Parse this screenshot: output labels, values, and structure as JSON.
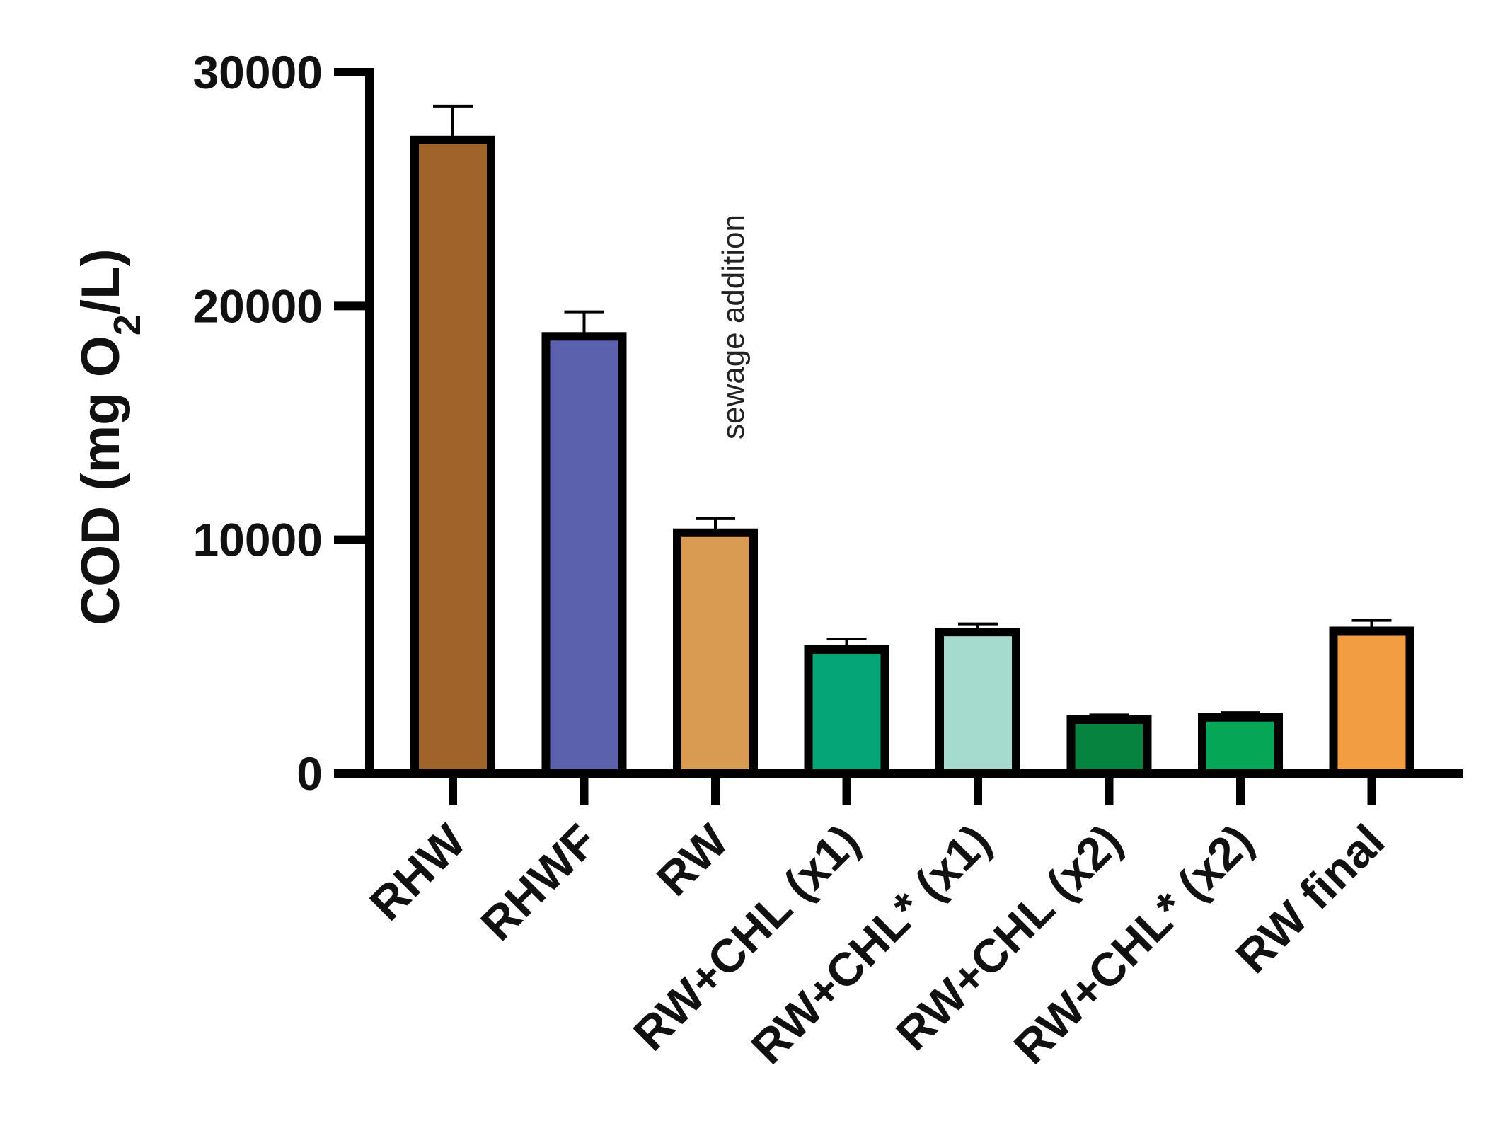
{
  "chart_data": {
    "type": "bar",
    "ylabel": {
      "prefix": "COD (mg O",
      "subscript": "2",
      "suffix": "/L)"
    },
    "xlabel": "",
    "ylim": [
      0,
      30000
    ],
    "yticks": [
      0,
      10000,
      20000,
      30000
    ],
    "ytick_labels": [
      "0",
      "10000",
      "20000",
      "30000"
    ],
    "grid": false,
    "legend": "none",
    "categories": [
      "RHW",
      "RHWF",
      "RW",
      "RW+CHL (x1)",
      "RW+CHL* (x1)",
      "RW+CHL (x2)",
      "RW+CHL* (x2)",
      "RW final"
    ],
    "values": [
      27100,
      18700,
      10300,
      5300,
      6050,
      2300,
      2400,
      6100
    ],
    "errors": [
      1450,
      1050,
      600,
      450,
      350,
      200,
      200,
      450
    ],
    "colors": [
      "#a0642a",
      "#5b61ad",
      "#d99a52",
      "#05a577",
      "#a5dacf",
      "#06843f",
      "#05a656",
      "#f39d42"
    ],
    "annotations": [
      {
        "text": "sewage addition",
        "near_category": "RW",
        "orientation": "vertical"
      }
    ]
  }
}
